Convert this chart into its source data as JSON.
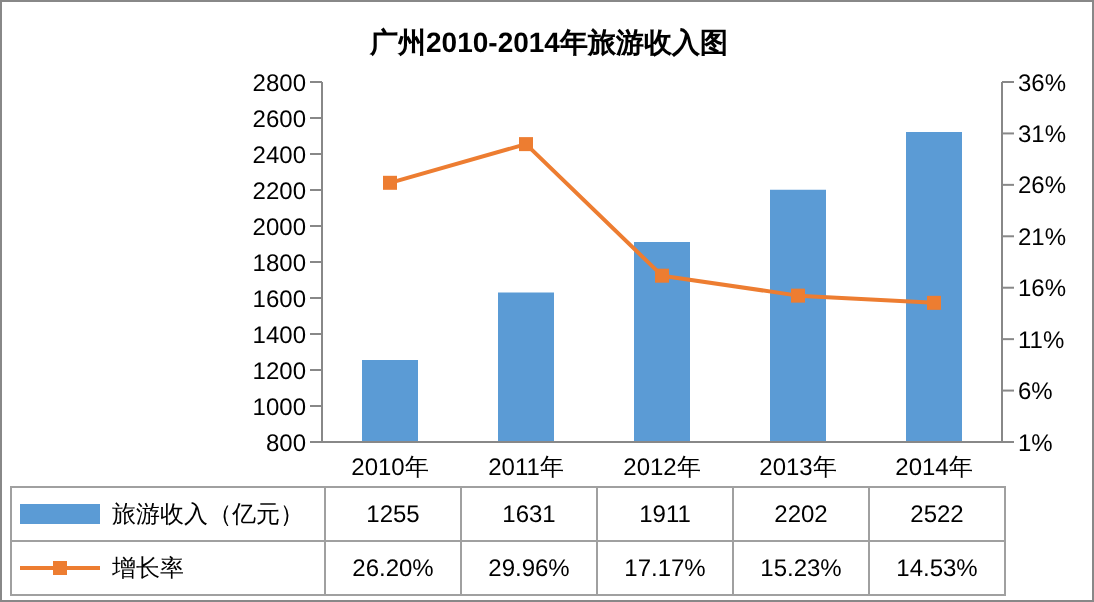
{
  "chart_data": {
    "type": "bar",
    "title": "广州2010-2014年旅游收入图",
    "categories": [
      "2010年",
      "2011年",
      "2012年",
      "2013年",
      "2014年"
    ],
    "series": [
      {
        "name": "旅游收入（亿元）",
        "color": "#5b9bd5",
        "values": [
          1255,
          1631,
          1911,
          2202,
          2522
        ],
        "value_labels": [
          "1255",
          "1631",
          "1911",
          "2202",
          "2522"
        ]
      },
      {
        "name": "增长率",
        "type": "line",
        "axis": "y2",
        "color": "#ed7d31",
        "values": [
          26.2,
          29.96,
          17.17,
          15.23,
          14.53
        ],
        "value_labels": [
          "26.20%",
          "29.96%",
          "17.17%",
          "15.23%",
          "14.53%"
        ]
      }
    ],
    "ylim": [
      800,
      2800
    ],
    "yticks": [
      800,
      1000,
      1200,
      1400,
      1600,
      1800,
      2000,
      2200,
      2400,
      2600,
      2800
    ],
    "y2lim": [
      1,
      36
    ],
    "y2ticks": [
      {
        "value": 1,
        "label": "1%"
      },
      {
        "value": 6,
        "label": "6%"
      },
      {
        "value": 11,
        "label": "11%"
      },
      {
        "value": 16,
        "label": "16%"
      },
      {
        "value": 21,
        "label": "21%"
      },
      {
        "value": 26,
        "label": "26%"
      },
      {
        "value": 31,
        "label": "31%"
      },
      {
        "value": 36,
        "label": "36%"
      }
    ],
    "marker": "square",
    "legend": "bottom",
    "grid": false
  }
}
